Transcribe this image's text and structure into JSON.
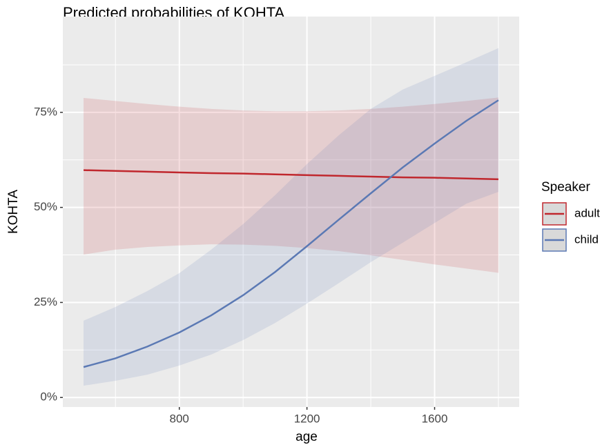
{
  "chart_data": {
    "type": "line",
    "title": "Predicted probabilities of KOHTA",
    "x_label": "age",
    "y_label": "KOHTA",
    "x": [
      500,
      600,
      700,
      800,
      900,
      1000,
      1100,
      1200,
      1300,
      1400,
      1500,
      1600,
      1700,
      1800
    ],
    "series": [
      {
        "name": "adult",
        "color": "#c0272d",
        "values": [
          59.8,
          59.6,
          59.4,
          59.2,
          59.0,
          58.9,
          58.7,
          58.5,
          58.3,
          58.1,
          57.9,
          57.8,
          57.6,
          57.4
        ],
        "lower": [
          37.6,
          38.9,
          39.6,
          40.0,
          40.3,
          40.2,
          39.9,
          39.3,
          38.5,
          37.4,
          36.2,
          35.0,
          33.9,
          32.8
        ],
        "upper": [
          78.8,
          78.0,
          77.2,
          76.5,
          75.9,
          75.5,
          75.3,
          75.3,
          75.5,
          75.9,
          76.5,
          77.2,
          78.0,
          78.9
        ]
      },
      {
        "name": "child",
        "color": "#5b79b4",
        "values": [
          8.0,
          10.3,
          13.4,
          17.1,
          21.6,
          26.9,
          33.0,
          39.8,
          46.8,
          53.7,
          60.5,
          66.8,
          72.8,
          78.2
        ],
        "lower": [
          3.1,
          4.4,
          6.0,
          8.4,
          11.3,
          15.1,
          19.6,
          24.7,
          30.1,
          35.6,
          40.7,
          45.9,
          51.0,
          54.1
        ],
        "upper": [
          20.2,
          23.8,
          28.0,
          32.7,
          38.9,
          45.6,
          53.2,
          61.4,
          69.0,
          75.9,
          81.0,
          84.6,
          88.2,
          91.9
        ]
      }
    ],
    "legend_title": "Speaker",
    "xlim": [
      435,
      1865
    ],
    "ylim": [
      -2.5,
      100.2
    ],
    "xticks": [
      800,
      1200,
      1600
    ],
    "yticks": [
      {
        "value": 0,
        "label": "0%"
      },
      {
        "value": 25,
        "label": "25%"
      },
      {
        "value": 50,
        "label": "50%"
      },
      {
        "value": 75,
        "label": "75%"
      }
    ],
    "xminor": [
      600,
      1000,
      1400,
      1800
    ],
    "yminor": [
      12.5,
      37.5,
      62.5,
      87.5
    ],
    "grid": true
  }
}
